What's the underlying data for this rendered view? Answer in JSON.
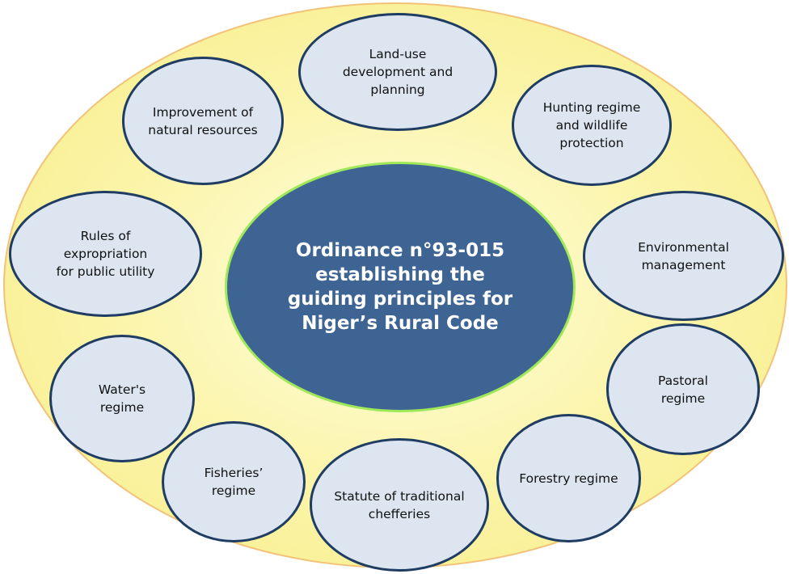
{
  "center": {
    "label": "Ordinance n°93-015\nestablishing the\nguiding principles for\nNiger’s Rural Code"
  },
  "nodes": {
    "land_use": "Land-use\ndevelopment and\nplanning",
    "hunting": "Hunting regime\nand wildlife\nprotection",
    "environmental": "Environmental\nmanagement",
    "pastoral": "Pastoral\nregime",
    "forestry": "Forestry regime",
    "chefferies": "Statute of traditional\nchefferies",
    "fisheries": "Fisheries’\nregime",
    "water": "Water's\nregime",
    "expropriation": "Rules of\nexpropriation\nfor public utility",
    "natural_resources": "Improvement of\nnatural resources"
  },
  "colors": {
    "outer_fill": "#fbf4a6",
    "outer_border": "#f2c27a",
    "center_fill": "#3e6494",
    "center_border": "#9fe85a",
    "node_fill": "#dce5f0",
    "node_border": "#1f3d63"
  }
}
